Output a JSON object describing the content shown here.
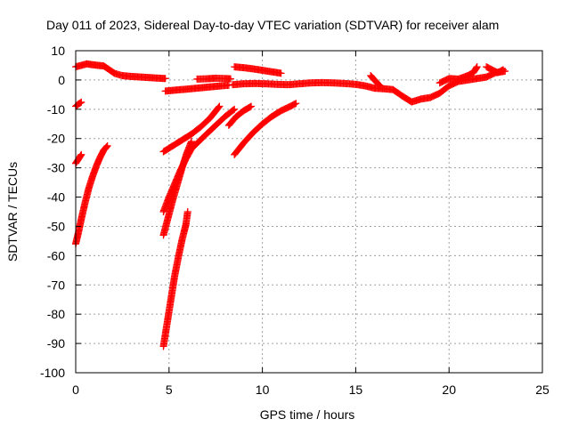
{
  "chart_data": {
    "type": "scatter",
    "title": "Day 011 of 2023, Sidereal Day-to-day VTEC variation (SDTVAR) for receiver alam",
    "xlabel": "GPS time / hours",
    "ylabel": "SDTVAR / TECUs",
    "xlim": [
      0,
      25
    ],
    "ylim": [
      -100,
      10
    ],
    "xticks": [
      0,
      5,
      10,
      15,
      20,
      25
    ],
    "yticks": [
      10,
      0,
      -10,
      -20,
      -30,
      -40,
      -50,
      -60,
      -70,
      -80,
      -90,
      -100
    ],
    "grid": true,
    "marker": "+",
    "color": "#ff0000",
    "series": [
      {
        "values": [
          [
            0.0,
            4.5
          ],
          [
            0.3,
            5.0
          ],
          [
            0.6,
            5.5
          ],
          [
            0.9,
            5.2
          ],
          [
            1.2,
            5.0
          ],
          [
            1.5,
            4.8
          ],
          [
            1.8,
            3.5
          ],
          [
            2.1,
            2.2
          ],
          [
            2.5,
            1.5
          ],
          [
            3.0,
            1.2
          ],
          [
            3.5,
            1.0
          ],
          [
            4.0,
            0.8
          ],
          [
            4.5,
            0.6
          ],
          [
            4.8,
            0.5
          ]
        ]
      },
      {
        "values": [
          [
            0.0,
            -9.0
          ],
          [
            0.15,
            -8.2
          ],
          [
            0.3,
            -7.6
          ]
        ]
      },
      {
        "values": [
          [
            0.0,
            -28.5
          ],
          [
            0.1,
            -27.5
          ],
          [
            0.2,
            -26.5
          ],
          [
            0.3,
            -25.5
          ]
        ]
      },
      {
        "values": [
          [
            0.0,
            -56.0
          ],
          [
            0.15,
            -52.0
          ],
          [
            0.3,
            -47.5
          ],
          [
            0.5,
            -42.0
          ],
          [
            0.7,
            -37.0
          ],
          [
            0.9,
            -33.0
          ],
          [
            1.1,
            -29.5
          ],
          [
            1.3,
            -26.5
          ],
          [
            1.5,
            -24.0
          ],
          [
            1.7,
            -22.5
          ]
        ]
      },
      {
        "values": [
          [
            4.8,
            -3.8
          ],
          [
            5.3,
            -3.5
          ],
          [
            5.8,
            -3.2
          ],
          [
            6.3,
            -2.9
          ],
          [
            6.8,
            -2.6
          ],
          [
            7.3,
            -2.3
          ],
          [
            7.8,
            -2.0
          ],
          [
            8.2,
            -1.8
          ]
        ]
      },
      {
        "values": [
          [
            6.5,
            0.3
          ],
          [
            7.0,
            0.4
          ],
          [
            7.5,
            0.6
          ],
          [
            8.0,
            0.5
          ],
          [
            8.3,
            0.4
          ]
        ]
      },
      {
        "values": [
          [
            8.5,
            4.5
          ],
          [
            9.0,
            4.2
          ],
          [
            9.5,
            3.8
          ],
          [
            10.0,
            3.3
          ],
          [
            10.5,
            2.8
          ],
          [
            11.0,
            2.3
          ]
        ]
      },
      {
        "values": [
          [
            8.4,
            -1.6
          ],
          [
            9.0,
            -1.3
          ],
          [
            9.6,
            -1.2
          ],
          [
            10.2,
            -1.3
          ],
          [
            10.8,
            -1.5
          ],
          [
            11.4,
            -1.6
          ],
          [
            12.0,
            -1.3
          ],
          [
            12.6,
            -1.0
          ],
          [
            13.2,
            -0.9
          ],
          [
            13.8,
            -1.0
          ],
          [
            14.4,
            -1.2
          ],
          [
            15.0,
            -1.5
          ],
          [
            15.5,
            -2.0
          ],
          [
            16.0,
            -2.8
          ],
          [
            16.5,
            -3.0
          ],
          [
            17.0,
            -3.3
          ],
          [
            17.5,
            -5.5
          ],
          [
            18.0,
            -7.5
          ],
          [
            18.5,
            -6.5
          ],
          [
            19.0,
            -6.0
          ],
          [
            19.5,
            -4.5
          ],
          [
            20.0,
            -2.0
          ],
          [
            20.5,
            -0.5
          ],
          [
            21.0,
            0.0
          ],
          [
            21.5,
            0.5
          ],
          [
            22.0,
            1.0
          ],
          [
            22.5,
            2.5
          ],
          [
            23.0,
            3.0
          ]
        ]
      },
      {
        "values": [
          [
            15.8,
            1.5
          ],
          [
            16.0,
            0.0
          ],
          [
            16.3,
            -2.0
          ]
        ]
      },
      {
        "values": [
          [
            19.5,
            -1.0
          ],
          [
            20.0,
            0.5
          ],
          [
            20.5,
            0.3
          ],
          [
            21.0,
            1.5
          ],
          [
            21.3,
            2.5
          ],
          [
            21.5,
            4.5
          ]
        ]
      },
      {
        "values": [
          [
            22.0,
            4.5
          ],
          [
            22.3,
            3.5
          ],
          [
            22.6,
            2.5
          ],
          [
            22.9,
            3.5
          ]
        ]
      },
      {
        "values": [
          [
            4.7,
            -24.5
          ],
          [
            5.2,
            -22.5
          ],
          [
            5.7,
            -20.5
          ],
          [
            6.2,
            -18.5
          ],
          [
            6.7,
            -16.0
          ],
          [
            7.2,
            -13.0
          ],
          [
            7.7,
            -9.0
          ]
        ]
      },
      {
        "values": [
          [
            4.7,
            -45.0
          ],
          [
            5.0,
            -40.0
          ],
          [
            5.3,
            -35.5
          ],
          [
            5.6,
            -31.0
          ],
          [
            5.9,
            -27.0
          ],
          [
            6.2,
            -23.5
          ],
          [
            6.6,
            -21.0
          ],
          [
            7.0,
            -18.5
          ],
          [
            7.5,
            -15.5
          ],
          [
            8.0,
            -12.5
          ],
          [
            8.5,
            -10.0
          ]
        ]
      },
      {
        "values": [
          [
            4.7,
            -53.0
          ],
          [
            4.95,
            -47.0
          ],
          [
            5.2,
            -41.0
          ],
          [
            5.45,
            -35.5
          ],
          [
            5.7,
            -30.0
          ],
          [
            5.95,
            -25.0
          ],
          [
            6.2,
            -21.0
          ]
        ]
      },
      {
        "values": [
          [
            8.5,
            -25.5
          ],
          [
            9.0,
            -21.5
          ],
          [
            9.5,
            -18.0
          ],
          [
            10.0,
            -15.0
          ],
          [
            10.5,
            -12.5
          ],
          [
            11.0,
            -10.5
          ],
          [
            11.5,
            -9.0
          ],
          [
            11.8,
            -8.0
          ]
        ]
      },
      {
        "values": [
          [
            8.2,
            -15.5
          ],
          [
            8.6,
            -12.5
          ],
          [
            9.0,
            -10.5
          ],
          [
            9.4,
            -9.0
          ]
        ]
      },
      {
        "values": [
          [
            4.7,
            -91.0
          ],
          [
            4.9,
            -83.0
          ],
          [
            5.1,
            -75.0
          ],
          [
            5.3,
            -67.0
          ],
          [
            5.5,
            -60.5
          ],
          [
            5.7,
            -54.5
          ],
          [
            5.9,
            -49.5
          ],
          [
            6.0,
            -45.0
          ]
        ]
      }
    ]
  }
}
